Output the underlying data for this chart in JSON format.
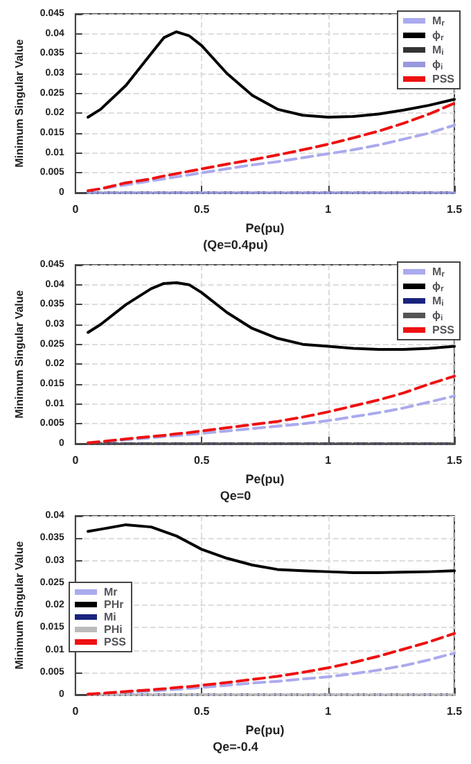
{
  "chart_data": [
    {
      "type": "line",
      "xlabel": "Pe(pu)",
      "ylabel": "Minimum Singular Value",
      "annotations": [
        "(Qe=0.4pu)"
      ],
      "x": [
        0.05,
        0.1,
        0.2,
        0.3,
        0.35,
        0.4,
        0.45,
        0.5,
        0.6,
        0.7,
        0.8,
        0.9,
        1.0,
        1.1,
        1.2,
        1.3,
        1.4,
        1.5
      ],
      "xlim": [
        0,
        1.5
      ],
      "xticks": [
        0,
        0.5,
        1,
        1.5
      ],
      "ylim": [
        0,
        0.045
      ],
      "yticks": [
        0,
        0.005,
        0.01,
        0.015,
        0.02,
        0.025,
        0.03,
        0.035,
        0.04,
        0.045
      ],
      "grid": true,
      "legend": "top right",
      "marker": "none",
      "series": [
        {
          "name": "M$_{r}$",
          "color": "#aaaaee",
          "line_style": "dashed",
          "values": [
            0.0005,
            0.001,
            0.002,
            0.003,
            0.0035,
            0.004,
            0.0045,
            0.005,
            0.006,
            0.007,
            0.0078,
            0.0088,
            0.0098,
            0.0108,
            0.012,
            0.0135,
            0.015,
            0.017
          ]
        },
        {
          "name": "ϕ$_{r}$",
          "color": "#000000",
          "line_style": "solid",
          "values": [
            0.019,
            0.021,
            0.027,
            0.035,
            0.039,
            0.0405,
            0.0395,
            0.037,
            0.03,
            0.0245,
            0.021,
            0.0195,
            0.019,
            0.0192,
            0.0198,
            0.0208,
            0.022,
            0.0235
          ]
        },
        {
          "name": "M$_{i}$",
          "color": "#333333",
          "line_style": "dashed",
          "values": [
            0,
            0,
            0,
            0,
            0,
            0,
            0,
            0,
            0,
            0,
            0,
            0,
            0,
            0,
            0,
            0,
            0,
            0
          ]
        },
        {
          "name": "ϕ$_{i}$",
          "color": "#9999dd",
          "line_style": "dotted",
          "values": [
            0,
            0,
            0,
            0,
            0,
            0,
            0,
            0,
            0,
            0,
            0,
            0,
            0,
            0,
            0,
            0,
            0,
            0
          ]
        },
        {
          "name": "PSS",
          "color": "#ee1111",
          "line_style": "dashed",
          "values": [
            0.0005,
            0.001,
            0.0025,
            0.0035,
            0.0042,
            0.0048,
            0.0054,
            0.006,
            0.0072,
            0.0083,
            0.0095,
            0.0108,
            0.0122,
            0.0138,
            0.0155,
            0.0175,
            0.0198,
            0.0225
          ]
        }
      ]
    },
    {
      "type": "line",
      "xlabel": "Pe(pu)",
      "ylabel": "Minimum Singular Value",
      "annotations": [
        "Qe=0"
      ],
      "x": [
        0.05,
        0.1,
        0.2,
        0.3,
        0.35,
        0.4,
        0.45,
        0.5,
        0.6,
        0.7,
        0.8,
        0.9,
        1.0,
        1.1,
        1.2,
        1.3,
        1.4,
        1.5
      ],
      "xlim": [
        0,
        1.5
      ],
      "xticks": [
        0,
        0.5,
        1,
        1.5
      ],
      "ylim": [
        0,
        0.045
      ],
      "yticks": [
        0,
        0.005,
        0.01,
        0.015,
        0.02,
        0.025,
        0.03,
        0.035,
        0.04,
        0.045
      ],
      "grid": true,
      "legend": "top right",
      "marker": "none",
      "series": [
        {
          "name": "M$_{r}$",
          "color": "#aaaaee",
          "line_style": "dashed",
          "values": [
            0.0001,
            0.0003,
            0.001,
            0.0015,
            0.0018,
            0.002,
            0.0023,
            0.0026,
            0.0032,
            0.0038,
            0.0044,
            0.005,
            0.0058,
            0.0068,
            0.0078,
            0.009,
            0.0105,
            0.012
          ]
        },
        {
          "name": "ϕ$_{r}$",
          "color": "#000000",
          "line_style": "solid",
          "values": [
            0.028,
            0.03,
            0.035,
            0.039,
            0.0403,
            0.0405,
            0.04,
            0.038,
            0.033,
            0.029,
            0.0265,
            0.025,
            0.0245,
            0.024,
            0.0237,
            0.0237,
            0.024,
            0.0245
          ]
        },
        {
          "name": "M$_{i}$",
          "color": "#1a237e",
          "line_style": "dashed",
          "values": [
            0,
            0,
            0,
            0,
            0,
            0,
            0,
            0,
            0,
            0,
            0,
            0,
            0,
            0,
            0,
            0,
            0,
            0
          ]
        },
        {
          "name": "ϕ$_{i}$",
          "color": "#555555",
          "line_style": "dotted",
          "values": [
            0,
            0,
            0,
            0,
            0,
            0,
            0,
            0,
            0,
            0,
            0,
            0,
            0,
            0,
            0,
            0,
            0,
            0
          ]
        },
        {
          "name": "PSS",
          "color": "#ee1111",
          "line_style": "dashed",
          "values": [
            0.0002,
            0.0005,
            0.0012,
            0.0018,
            0.0021,
            0.0025,
            0.0028,
            0.0032,
            0.004,
            0.0048,
            0.0056,
            0.0067,
            0.008,
            0.0095,
            0.011,
            0.0128,
            0.015,
            0.017
          ]
        }
      ]
    },
    {
      "type": "line",
      "xlabel": "Pe(pu)",
      "ylabel": "Minimum Singular Value",
      "annotations": [
        "Qe=-0.4"
      ],
      "x": [
        0.05,
        0.1,
        0.2,
        0.3,
        0.35,
        0.4,
        0.45,
        0.5,
        0.6,
        0.7,
        0.8,
        0.9,
        1.0,
        1.1,
        1.2,
        1.3,
        1.4,
        1.5
      ],
      "xlim": [
        0,
        1.5
      ],
      "xticks": [
        0,
        0.5,
        1,
        1.5
      ],
      "ylim": [
        0,
        0.04
      ],
      "yticks": [
        0,
        0.005,
        0.01,
        0.015,
        0.02,
        0.025,
        0.03,
        0.035,
        0.04
      ],
      "grid": true,
      "legend": "left",
      "marker": "none",
      "series": [
        {
          "name": "Mr",
          "color": "#aaaaee",
          "line_style": "dashed",
          "values": [
            0.0001,
            0.0002,
            0.0005,
            0.0008,
            0.001,
            0.0012,
            0.0014,
            0.0016,
            0.0021,
            0.0026,
            0.003,
            0.0035,
            0.004,
            0.0047,
            0.0055,
            0.0065,
            0.0078,
            0.0093
          ]
        },
        {
          "name": "PHr",
          "color": "#000000",
          "line_style": "solid",
          "values": [
            0.0365,
            0.037,
            0.038,
            0.0375,
            0.0365,
            0.0355,
            0.034,
            0.0325,
            0.0305,
            0.029,
            0.028,
            0.0277,
            0.0275,
            0.0273,
            0.0273,
            0.0274,
            0.0275,
            0.0277
          ]
        },
        {
          "name": "Mi",
          "color": "#1a237e",
          "line_style": "dashed",
          "values": [
            0,
            0,
            0,
            0,
            0,
            0,
            0,
            0,
            0,
            0,
            0,
            0,
            0,
            0,
            0,
            0,
            0,
            0
          ]
        },
        {
          "name": "PHi",
          "color": "#bbbbbb",
          "line_style": "dotted",
          "values": [
            0,
            0,
            0,
            0,
            0,
            0,
            0,
            0,
            0,
            0,
            0,
            0,
            0,
            0,
            0,
            0,
            0,
            0
          ]
        },
        {
          "name": "PSS",
          "color": "#ee1111",
          "line_style": "dashed",
          "values": [
            0.0001,
            0.0003,
            0.0007,
            0.0011,
            0.0013,
            0.0016,
            0.0018,
            0.0021,
            0.0027,
            0.0034,
            0.0041,
            0.005,
            0.006,
            0.0072,
            0.0086,
            0.0102,
            0.0118,
            0.0137
          ]
        }
      ]
    }
  ]
}
